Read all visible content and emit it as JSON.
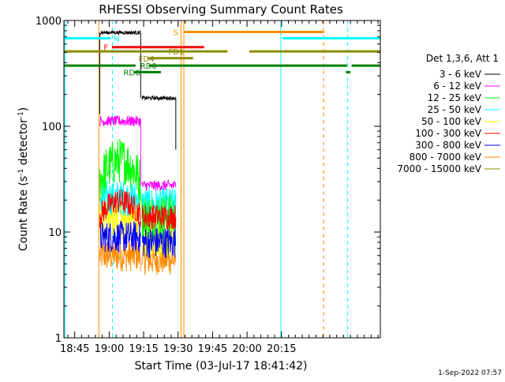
{
  "chart_data": {
    "type": "line",
    "title": "RHESSI Observing Summary Count Rates",
    "xlabel": "Start Time (03-Jul-17 18:41:42)",
    "ylabel_main": "Count Rate (s",
    "ylabel_sup1": "-1",
    "ylabel_mid": " detector",
    "ylabel_sup2": "-1",
    "ylabel_end": ")",
    "y_scale": "log",
    "ylim": [
      1,
      1000
    ],
    "xlim_minutes": [
      -4.7,
      133.0
    ],
    "x_tick_minutes": [
      0,
      15,
      30,
      45,
      60,
      75,
      90
    ],
    "x_tick_labels": [
      "18:45",
      "19:00",
      "19:15",
      "19:30",
      "19:45",
      "20:00",
      "20:15"
    ],
    "y_tick_values": [
      1,
      10,
      100,
      1000
    ],
    "y_tick_labels": [
      "1",
      "10",
      "100",
      "1000"
    ],
    "legend": {
      "header": "Det 1,3,6, Att 1",
      "placement": "right"
    },
    "footer_date": "1-Sep-2022 07:57",
    "series": [
      {
        "name": "3 - 6 keV",
        "color": "#000000",
        "segments": [
          {
            "t": [
              10.9,
              28.7
            ],
            "level": 770
          },
          {
            "t": [
              29.3,
              44.0
            ],
            "level": 185
          }
        ]
      },
      {
        "name": "6 - 12 keV",
        "color": "#ff00ff",
        "segments": [
          {
            "t": [
              10.9,
              28.7
            ],
            "level": 112
          },
          {
            "t": [
              29.3,
              44.0
            ],
            "level": 27.5
          }
        ]
      },
      {
        "name": "12 - 25 keV",
        "color": "#00ff00",
        "segments": [
          {
            "t": [
              10.9,
              28.7
            ],
            "level": 38
          },
          {
            "t": [
              29.3,
              44.0
            ],
            "level": 14
          }
        ]
      },
      {
        "name": "25 - 50 keV",
        "color": "#00ffff",
        "segments": [
          {
            "t": [
              10.9,
              28.7
            ],
            "level": 21
          },
          {
            "t": [
              29.3,
              44.0
            ],
            "level": 18
          }
        ]
      },
      {
        "name": "50 - 100 keV",
        "color": "#ffff00",
        "segments": [
          {
            "t": [
              10.9,
              28.7
            ],
            "level": 13
          },
          {
            "t": [
              29.3,
              44.0
            ],
            "level": 9
          }
        ]
      },
      {
        "name": "100 - 300 keV",
        "color": "#ff0000",
        "segments": [
          {
            "t": [
              10.9,
              28.7
            ],
            "level": 17
          },
          {
            "t": [
              29.3,
              44.0
            ],
            "level": 14
          }
        ]
      },
      {
        "name": "300 - 800 keV",
        "color": "#0000ff",
        "segments": [
          {
            "t": [
              10.9,
              28.7
            ],
            "level": 9
          },
          {
            "t": [
              29.3,
              44.0
            ],
            "level": 8
          }
        ]
      },
      {
        "name": "800 - 7000 keV",
        "color": "#ff8c00",
        "segments": [
          {
            "t": [
              10.9,
              28.7
            ],
            "level": 6
          },
          {
            "t": [
              29.3,
              44.0
            ],
            "level": 5.5
          }
        ]
      },
      {
        "name": "7000 - 15000 keV",
        "color": "#8b8b00",
        "segments": []
      }
    ],
    "flag_bars": [
      {
        "label": "N",
        "color": "#00ffff",
        "level": 680,
        "intervals": [
          [
            -4.7,
            15.6
          ],
          [
            90.5,
            133.0
          ]
        ],
        "label_t": 17.0
      },
      {
        "label": "S",
        "color": "#ff8c00",
        "level": 780,
        "intervals": [
          [
            47.5,
            108.5
          ]
        ],
        "label_t": 42.8
      },
      {
        "label": "F",
        "color": "#ff0000",
        "level": 560,
        "intervals": [
          [
            16.2,
            56.3
          ]
        ],
        "label_t": 12.6
      },
      {
        "label": "FD1",
        "color": "#8b8b00",
        "level": 510,
        "intervals": [
          [
            -4.7,
            66.5
          ],
          [
            76.0,
            133.0
          ]
        ],
        "label_t": 40.8
      },
      {
        "label": "FD4",
        "color": "#8b8b00",
        "level": 440,
        "intervals": [
          [
            31.6,
            51.5
          ]
        ],
        "label_t": 27.8
      },
      {
        "label": "RD0",
        "color": "#008000",
        "level": 375,
        "intervals": [
          [
            -4.7,
            26.5
          ],
          [
            32.2,
            118.5
          ],
          [
            120.5,
            133.0
          ]
        ],
        "label_t": 28.5
      },
      {
        "label": "RD6",
        "color": "#008000",
        "level": 325,
        "intervals": [
          [
            26.0,
            37.5
          ],
          [
            118.0,
            120.0
          ]
        ],
        "label_t": 21.2
      }
    ],
    "vertical_lines": [
      {
        "t": -4.3,
        "color": "#00ffff",
        "style": "solid"
      },
      {
        "t": 10.5,
        "color": "#ff8c00",
        "style": "solid"
      },
      {
        "t": 16.4,
        "color": "#00ffff",
        "style": "dashed"
      },
      {
        "t": 46.3,
        "color": "#ff8c00",
        "style": "solid"
      },
      {
        "t": 47.5,
        "color": "#ff8c00",
        "style": "solid"
      },
      {
        "t": 89.7,
        "color": "#00ffff",
        "style": "solid"
      },
      {
        "t": 108.3,
        "color": "#ff8c00",
        "style": "dashed"
      },
      {
        "t": 118.8,
        "color": "#00ffff",
        "style": "dashed"
      }
    ]
  }
}
